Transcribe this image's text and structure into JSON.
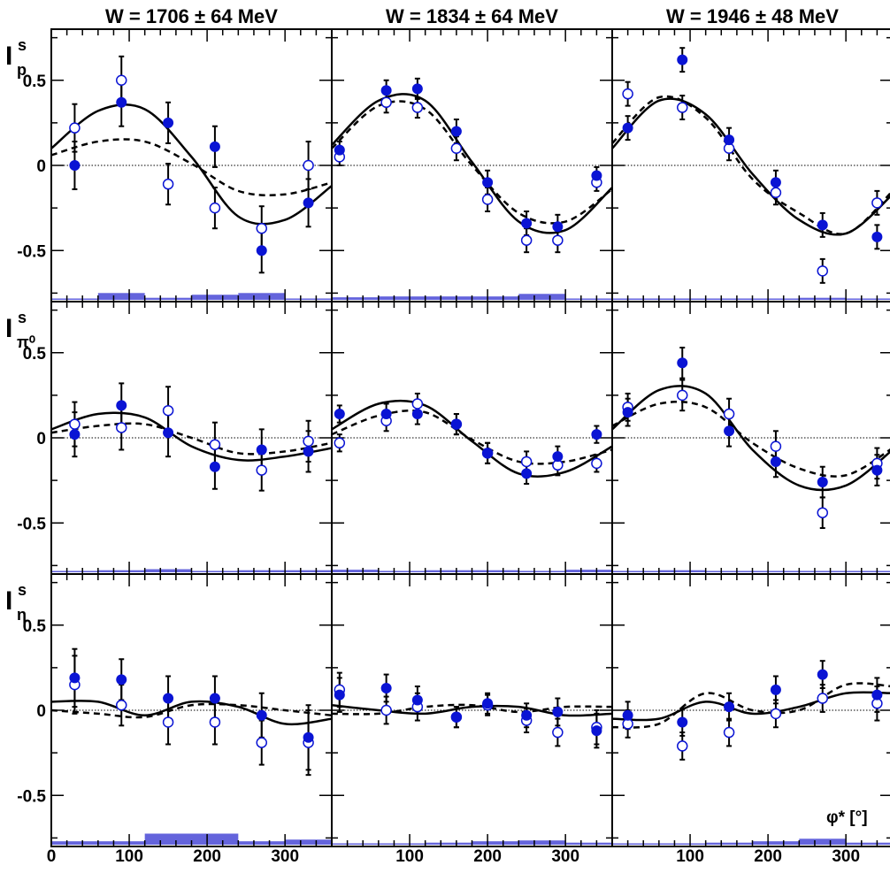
{
  "figure": {
    "column_titles": [
      "W = 1706 ± 64 MeV",
      "W = 1834 ± 64 MeV",
      "W = 1946 ± 48 MeV"
    ],
    "row_labels": [
      {
        "main": "I",
        "sup": "s",
        "sub": "p"
      },
      {
        "main": "I",
        "sup": "s",
        "sub": "π⁰"
      },
      {
        "main": "I",
        "sup": "s",
        "sub": "η"
      }
    ],
    "y_tick_labels": [
      "0.5",
      "0",
      "-0.5"
    ],
    "x_tick_labels_col0": [
      "0",
      "100",
      "200",
      "300"
    ],
    "x_tick_labels_col": [
      "100",
      "200",
      "300"
    ],
    "xlabel": "φ* [°]",
    "colors": {
      "filled": "#0a14d4",
      "open": "#0a14d4",
      "band": "#6464dc",
      "curve": "#000000"
    }
  },
  "chart_data": {
    "type": "scatter",
    "xlim": [
      0,
      360
    ],
    "ylim": [
      -0.8,
      0.8
    ],
    "x": [
      30,
      90,
      150,
      210,
      270,
      330
    ],
    "band_x": [
      [
        0,
        60
      ],
      [
        60,
        120
      ],
      [
        120,
        180
      ],
      [
        180,
        240
      ],
      [
        240,
        300
      ],
      [
        300,
        360
      ]
    ],
    "panels": [
      {
        "row": 0,
        "col": 0,
        "filled": [
          0.0,
          0.37,
          0.25,
          0.11,
          -0.5,
          -0.22
        ],
        "open": [
          0.22,
          0.5,
          -0.11,
          -0.25,
          -0.37,
          0.0
        ],
        "err": [
          0.14,
          0.14,
          0.12,
          0.12,
          0.13,
          0.14
        ],
        "solid": [
          0.1,
          0.32,
          0.33,
          0.05,
          -0.3,
          -0.32,
          -0.12
        ],
        "dashed": [
          0.06,
          0.14,
          0.14,
          0.01,
          -0.15,
          -0.17,
          -0.1
        ],
        "band": [
          0.008,
          0.04,
          0.012,
          0.03,
          0.04,
          0.008
        ]
      },
      {
        "row": 0,
        "col": 1,
        "filled": [
          0.09,
          0.44,
          0.45,
          0.2,
          -0.1,
          -0.34,
          -0.36,
          -0.06
        ],
        "open": [
          0.05,
          0.37,
          0.34,
          0.1,
          -0.2,
          -0.44,
          -0.44,
          -0.1
        ],
        "err": [
          0.05,
          0.06,
          0.06,
          0.07,
          0.07,
          0.07,
          0.07,
          0.05
        ],
        "x": [
          10,
          70,
          110,
          160,
          200,
          250,
          290,
          340
        ],
        "solid": [
          0.12,
          0.38,
          0.38,
          0.02,
          -0.33,
          -0.38,
          -0.13
        ],
        "dashed": [
          0.1,
          0.35,
          0.33,
          0.0,
          -0.28,
          -0.33,
          -0.14
        ],
        "band": [
          0.015,
          0.02,
          0.02,
          0.02,
          0.035,
          0.008
        ]
      },
      {
        "row": 0,
        "col": 2,
        "filled": [
          0.22,
          0.62,
          0.15,
          -0.1,
          -0.35,
          -0.42
        ],
        "open": [
          0.42,
          0.34,
          0.1,
          -0.16,
          -0.62,
          -0.22
        ],
        "err": [
          0.07,
          0.07,
          0.07,
          0.07,
          0.07,
          0.07
        ],
        "x": [
          20,
          90,
          150,
          210,
          270,
          340
        ],
        "solid": [
          0.1,
          0.38,
          0.3,
          -0.05,
          -0.32,
          -0.4,
          -0.17
        ],
        "dashed": [
          0.13,
          0.4,
          0.28,
          -0.08,
          -0.28,
          -0.4,
          -0.15
        ],
        "band": [
          0.008,
          0.008,
          0.008,
          0.008,
          0.012,
          0.008
        ]
      },
      {
        "row": 1,
        "col": 0,
        "filled": [
          0.02,
          0.19,
          0.03,
          -0.17,
          -0.07,
          -0.08
        ],
        "open": [
          0.08,
          0.06,
          0.16,
          -0.04,
          -0.19,
          -0.02
        ],
        "err": [
          0.13,
          0.13,
          0.14,
          0.13,
          0.12,
          0.12
        ],
        "solid": [
          0.05,
          0.14,
          0.12,
          -0.05,
          -0.13,
          -0.11,
          -0.06
        ],
        "dashed": [
          0.03,
          0.07,
          0.08,
          0.0,
          -0.09,
          -0.08,
          -0.03
        ],
        "band": [
          0.008,
          0.012,
          0.018,
          0.008,
          0.012,
          0.012
        ]
      },
      {
        "row": 1,
        "col": 1,
        "filled": [
          0.14,
          0.14,
          0.14,
          0.08,
          -0.09,
          -0.21,
          -0.11,
          0.02
        ],
        "open": [
          -0.03,
          0.1,
          0.2,
          0.08,
          -0.09,
          -0.14,
          -0.16,
          -0.15
        ],
        "err": [
          0.05,
          0.06,
          0.06,
          0.06,
          0.06,
          0.06,
          0.06,
          0.05
        ],
        "x": [
          10,
          70,
          110,
          160,
          200,
          250,
          290,
          340
        ],
        "solid": [
          0.05,
          0.2,
          0.19,
          -0.02,
          -0.21,
          -0.2,
          -0.05
        ],
        "dashed": [
          0.02,
          0.13,
          0.15,
          -0.01,
          -0.14,
          -0.14,
          -0.07
        ],
        "band": [
          0.015,
          0.008,
          0.012,
          0.012,
          0.008,
          0.015
        ]
      },
      {
        "row": 1,
        "col": 2,
        "filled": [
          0.15,
          0.44,
          0.04,
          -0.14,
          -0.26,
          -0.19
        ],
        "open": [
          0.18,
          0.25,
          0.14,
          -0.05,
          -0.44,
          -0.15
        ],
        "err": [
          0.08,
          0.09,
          0.09,
          0.09,
          0.09,
          0.09
        ],
        "x": [
          20,
          90,
          150,
          210,
          270,
          340
        ],
        "solid": [
          0.05,
          0.28,
          0.26,
          -0.07,
          -0.28,
          -0.28,
          -0.07
        ],
        "dashed": [
          0.07,
          0.2,
          0.18,
          -0.03,
          -0.18,
          -0.22,
          -0.06
        ],
        "band": [
          0.008,
          0.012,
          0.008,
          0.008,
          0.008,
          0.008
        ]
      },
      {
        "row": 2,
        "col": 0,
        "filled": [
          0.19,
          0.18,
          0.07,
          0.07,
          -0.03,
          -0.16
        ],
        "open": [
          0.15,
          0.03,
          -0.07,
          -0.07,
          -0.19,
          -0.19
        ],
        "err": [
          0.17,
          0.12,
          0.13,
          0.13,
          0.13,
          0.19
        ],
        "solid": [
          0.05,
          0.05,
          -0.03,
          0.05,
          0.02,
          -0.08,
          -0.05
        ],
        "dashed": [
          0.0,
          -0.02,
          -0.04,
          0.03,
          0.03,
          0.0,
          -0.03
        ],
        "band": [
          0.02,
          0.02,
          0.065,
          0.065,
          0.02,
          0.03
        ]
      },
      {
        "row": 2,
        "col": 1,
        "filled": [
          0.09,
          0.13,
          0.06,
          -0.04,
          0.04,
          -0.03,
          -0.01,
          -0.12
        ],
        "open": [
          0.12,
          0.0,
          0.02,
          -0.04,
          0.03,
          -0.06,
          -0.13,
          -0.1
        ],
        "err": [
          0.1,
          0.08,
          0.08,
          0.06,
          0.06,
          0.07,
          0.08,
          0.1
        ],
        "x": [
          10,
          70,
          110,
          160,
          200,
          250,
          290,
          340
        ],
        "solid": [
          0.03,
          0.0,
          -0.02,
          0.02,
          0.02,
          -0.03,
          -0.02
        ],
        "dashed": [
          -0.02,
          -0.02,
          0.02,
          0.03,
          -0.01,
          0.02,
          0.02
        ],
        "band": [
          0.008,
          0.008,
          0.012,
          0.02,
          0.025,
          0.012
        ]
      },
      {
        "row": 2,
        "col": 2,
        "filled": [
          -0.03,
          -0.07,
          0.02,
          0.12,
          0.21,
          0.09
        ],
        "open": [
          -0.08,
          -0.21,
          -0.13,
          -0.02,
          0.07,
          0.04
        ],
        "err": [
          0.08,
          0.08,
          0.08,
          0.08,
          0.08,
          0.1
        ],
        "x": [
          20,
          90,
          150,
          210,
          270,
          340
        ],
        "solid": [
          -0.05,
          -0.05,
          0.05,
          -0.02,
          0.02,
          0.1,
          0.1
        ],
        "dashed": [
          -0.1,
          -0.08,
          0.1,
          0.0,
          0.0,
          0.15,
          0.14
        ],
        "band": [
          0.008,
          0.008,
          0.012,
          0.02,
          0.035,
          0.012
        ]
      }
    ]
  }
}
